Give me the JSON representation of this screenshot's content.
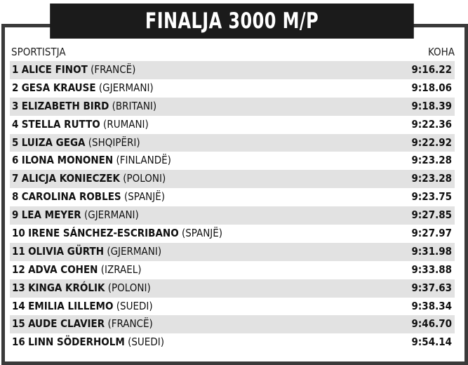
{
  "title": "FINALJA 3000 M/P",
  "header": {
    "athlete": "SPORTISTJA",
    "time": "KOHA"
  },
  "rows": [
    {
      "rank": "1",
      "name": "ALICE FINOT",
      "country": "(FRANCË)",
      "time": "9:16.22"
    },
    {
      "rank": "2",
      "name": "GESA KRAUSE",
      "country": "(GJERMANI)",
      "time": "9:18.06"
    },
    {
      "rank": "3",
      "name": "ELIZABETH BIRD",
      "country": "(BRITANI)",
      "time": "9:18.39"
    },
    {
      "rank": "4",
      "name": "STELLA RUTTO",
      "country": "(RUMANI)",
      "time": "9:22.36"
    },
    {
      "rank": "5",
      "name": "LUIZA GEGA",
      "country": "(SHQIPËRI)",
      "time": "9:22.92"
    },
    {
      "rank": "6",
      "name": "ILONA MONONEN",
      "country": "(FINLANDË)",
      "time": "9:23.28"
    },
    {
      "rank": "7",
      "name": "ALICJA KONIECZEK",
      "country": "(POLONI)",
      "time": "9:23.28"
    },
    {
      "rank": "8",
      "name": "CAROLINA ROBLES",
      "country": "(SPANJË)",
      "time": "9:23.75"
    },
    {
      "rank": "9",
      "name": "LEA MEYER",
      "country": "(GJERMANI)",
      "time": "9:27.85"
    },
    {
      "rank": "10",
      "name": "IRENE SÁNCHEZ-ESCRIBANO",
      "country": "(SPANJË)",
      "time": "9:27.97"
    },
    {
      "rank": "11",
      "name": "OLIVIA GÜRTH",
      "country": "(GJERMANI)",
      "time": "9:31.98"
    },
    {
      "rank": "12",
      "name": "ADVA COHEN",
      "country": "(IZRAEL)",
      "time": "9:33.88"
    },
    {
      "rank": "13",
      "name": "KINGA KRÓLIK",
      "country": "(POLONI)",
      "time": "9:37.63"
    },
    {
      "rank": "14",
      "name": "EMILIA LILLEMO",
      "country": "(SUEDI)",
      "time": "9:38.34"
    },
    {
      "rank": "15",
      "name": "AUDE CLAVIER",
      "country": "(FRANCË)",
      "time": "9:46.70"
    },
    {
      "rank": "16",
      "name": "LINN SÖDERHOLM",
      "country": "(SUEDI)",
      "time": "9:54.14"
    }
  ]
}
